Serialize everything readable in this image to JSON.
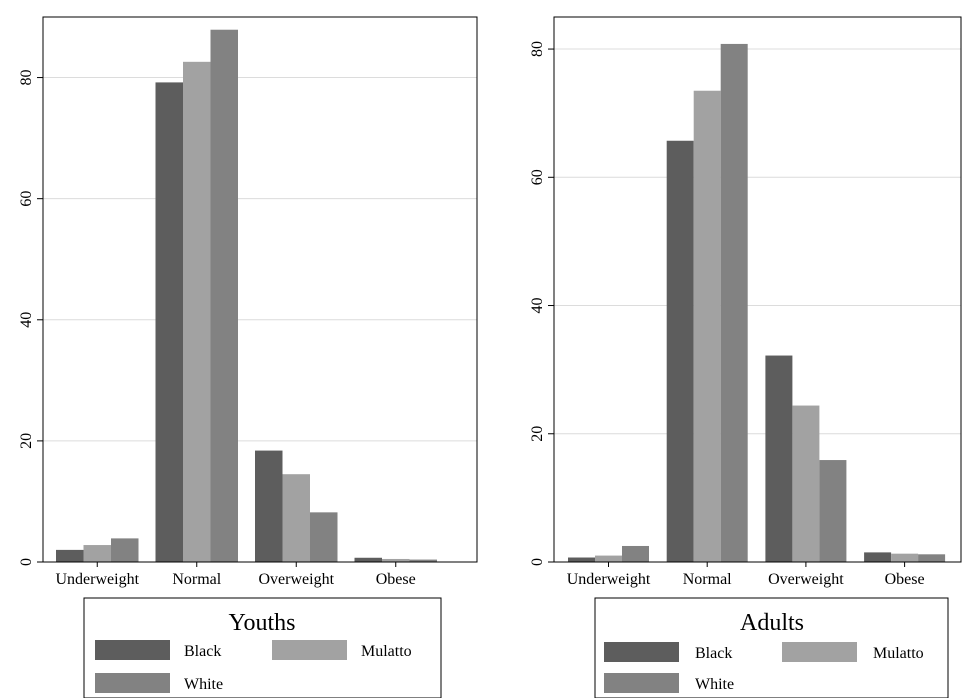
{
  "colors": {
    "Black": "#5d5d5d",
    "Mulatto": "#a2a2a2",
    "White": "#828282",
    "grid": "#dcdcdc",
    "axis": "#000000"
  },
  "chart_data": [
    {
      "type": "bar",
      "title": "",
      "xlabel": "",
      "ylabel": "",
      "legend_title": "Youths",
      "legend_position": "bottom",
      "grid": true,
      "ylim": [
        0,
        90
      ],
      "yticks": [
        0,
        20,
        40,
        60,
        80
      ],
      "ytick_labels": [
        "0",
        "20",
        "40",
        "60",
        "80"
      ],
      "categories": [
        "Underweight",
        "Normal",
        "Overweight",
        "Obese"
      ],
      "series": [
        {
          "name": "Black",
          "values": [
            2.0,
            79.2,
            18.4,
            0.7
          ]
        },
        {
          "name": "Mulatto",
          "values": [
            2.8,
            82.6,
            14.5,
            0.5
          ]
        },
        {
          "name": "White",
          "values": [
            3.9,
            87.9,
            8.2,
            0.4
          ]
        }
      ]
    },
    {
      "type": "bar",
      "title": "",
      "xlabel": "",
      "ylabel": "",
      "legend_title": "Adults",
      "legend_position": "bottom",
      "grid": true,
      "ylim": [
        0,
        85
      ],
      "yticks": [
        0,
        20,
        40,
        60,
        80
      ],
      "ytick_labels": [
        "0",
        "20",
        "40",
        "60",
        "80"
      ],
      "categories": [
        "Underweight",
        "Normal",
        "Overweight",
        "Obese"
      ],
      "series": [
        {
          "name": "Black",
          "values": [
            0.7,
            65.7,
            32.2,
            1.5
          ]
        },
        {
          "name": "Mulatto",
          "values": [
            1.0,
            73.5,
            24.4,
            1.3
          ]
        },
        {
          "name": "White",
          "values": [
            2.5,
            80.8,
            15.9,
            1.2
          ]
        }
      ]
    }
  ]
}
